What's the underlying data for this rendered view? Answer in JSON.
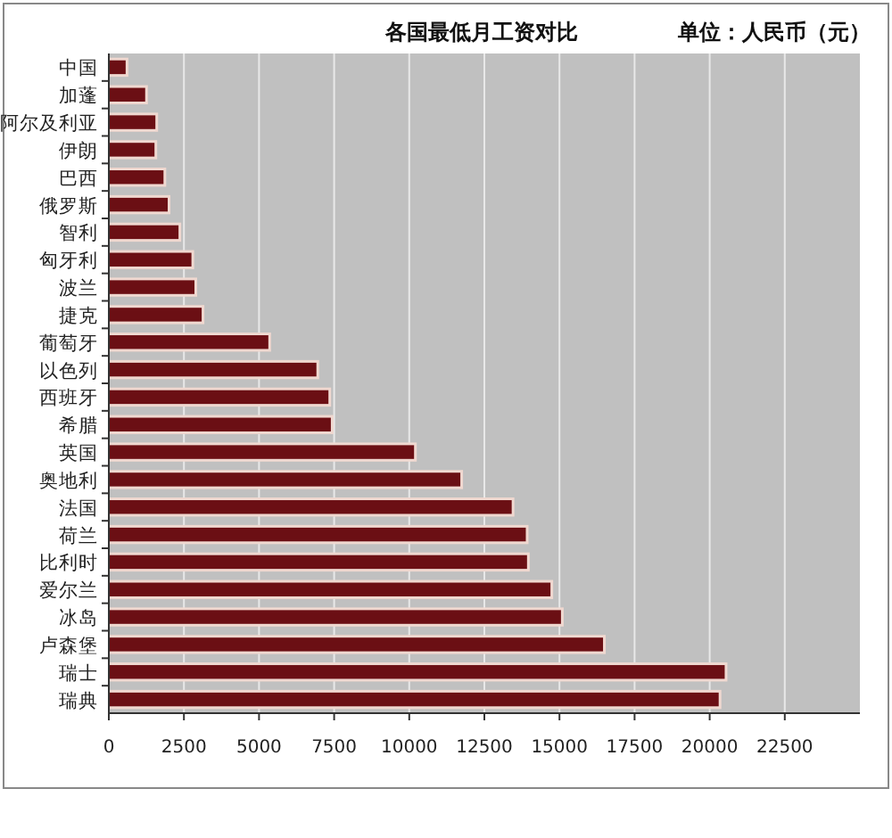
{
  "chart_data": {
    "type": "bar",
    "orientation": "horizontal",
    "title": "各国最低月工资对比",
    "subtitle": "单位：人民币（元）",
    "categories": [
      "中国",
      "加蓬",
      "阿尔及利亚",
      "伊朗",
      "巴西",
      "俄罗斯",
      "智利",
      "匈牙利",
      "波兰",
      "捷克",
      "葡萄牙",
      "以色列",
      "西班牙",
      "希腊",
      "英国",
      "奥地利",
      "法国",
      "荷兰",
      "比利时",
      "爱尔兰",
      "冰岛",
      "卢森堡",
      "瑞士",
      "瑞典"
    ],
    "values": [
      560,
      1210,
      1550,
      1520,
      1820,
      1960,
      2320,
      2750,
      2850,
      3090,
      5310,
      6910,
      7310,
      7390,
      10160,
      11700,
      13410,
      13880,
      13920,
      14700,
      15050,
      16450,
      20500,
      20300
    ],
    "color": "#6b0f14",
    "xlim": [
      0,
      25000
    ],
    "xticks": [
      0,
      2500,
      5000,
      7500,
      10000,
      12500,
      15000,
      17500,
      20000,
      22500
    ],
    "grid": "x"
  }
}
